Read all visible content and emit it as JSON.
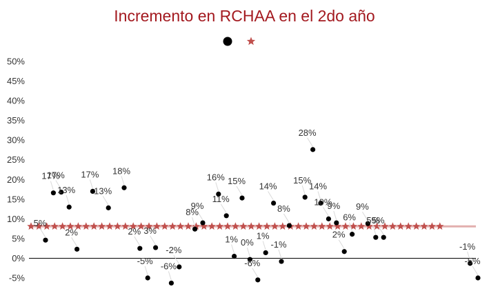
{
  "chart_data": {
    "type": "scatter",
    "title": "Incremento en RCHAA en el 2do año",
    "xlabel": "",
    "ylabel": "",
    "ylim": [
      -0.05,
      0.5
    ],
    "y_ticks": [
      "50%",
      "45%",
      "40%",
      "35%",
      "30%",
      "25%",
      "20%",
      "15%",
      "10%",
      "5%",
      "0%",
      "-5%"
    ],
    "y_tick_values": [
      0.5,
      0.45,
      0.4,
      0.35,
      0.3,
      0.25,
      0.2,
      0.15,
      0.1,
      0.05,
      0,
      -0.05
    ],
    "grid": false,
    "legend": "top-center",
    "colors": {
      "points": "#000000",
      "reference": "#c0504d",
      "title": "#a3191f",
      "axis": "#000000"
    },
    "series": [
      {
        "marker": "circle",
        "points": [
          {
            "x": 1,
            "y": 0.046,
            "label": "5%"
          },
          {
            "x": 2,
            "y": 0.166,
            "label": "17%"
          },
          {
            "x": 3,
            "y": 0.168,
            "label": "17%"
          },
          {
            "x": 4,
            "y": 0.13,
            "label": "13%"
          },
          {
            "x": 5,
            "y": 0.023,
            "label": "2%"
          },
          {
            "x": 7,
            "y": 0.17,
            "label": "17%"
          },
          {
            "x": 9,
            "y": 0.128,
            "label": "13%"
          },
          {
            "x": 11,
            "y": 0.179,
            "label": "18%"
          },
          {
            "x": 13,
            "y": 0.025,
            "label": "2%"
          },
          {
            "x": 14,
            "y": -0.05,
            "label": "-5%"
          },
          {
            "x": 15,
            "y": 0.027,
            "label": "3%"
          },
          {
            "x": 17,
            "y": -0.063,
            "label": "-6%"
          },
          {
            "x": 18,
            "y": -0.022,
            "label": "-2%"
          },
          {
            "x": 20,
            "y": 0.074,
            "label": "8%"
          },
          {
            "x": 21,
            "y": 0.09,
            "label": "9%"
          },
          {
            "x": 23,
            "y": 0.163,
            "label": "16%"
          },
          {
            "x": 24,
            "y": 0.108,
            "label": "11%"
          },
          {
            "x": 25,
            "y": 0.005,
            "label": "1%"
          },
          {
            "x": 26,
            "y": 0.153,
            "label": "15%"
          },
          {
            "x": 27,
            "y": -0.003,
            "label": "0%"
          },
          {
            "x": 28,
            "y": -0.055,
            "label": "-6%"
          },
          {
            "x": 29,
            "y": 0.014,
            "label": "1%"
          },
          {
            "x": 30,
            "y": 0.14,
            "label": "14%"
          },
          {
            "x": 31,
            "y": -0.008,
            "label": "-1%"
          },
          {
            "x": 32,
            "y": 0.083,
            "label": "8%"
          },
          {
            "x": 34,
            "y": 0.155,
            "label": "15%"
          },
          {
            "x": 35,
            "y": 0.276,
            "label": "28%"
          },
          {
            "x": 36,
            "y": 0.14,
            "label": "14%"
          },
          {
            "x": 37,
            "y": 0.1,
            "label": "10%"
          },
          {
            "x": 38,
            "y": 0.09,
            "label": "9%"
          },
          {
            "x": 39,
            "y": 0.017,
            "label": "2%"
          },
          {
            "x": 40,
            "y": 0.061,
            "label": "6%"
          },
          {
            "x": 42,
            "y": 0.088,
            "label": "9%"
          },
          {
            "x": 43,
            "y": 0.053,
            "label": "5%"
          },
          {
            "x": 44,
            "y": 0.053,
            "label": "5%"
          },
          {
            "x": 55,
            "y": -0.013,
            "label": "-1%"
          },
          {
            "x": 56,
            "y": -0.05,
            "label": "-5%"
          }
        ]
      },
      {
        "marker": "star",
        "constant_y": 0.081,
        "x_start": 0,
        "x_end": 52
      }
    ]
  }
}
